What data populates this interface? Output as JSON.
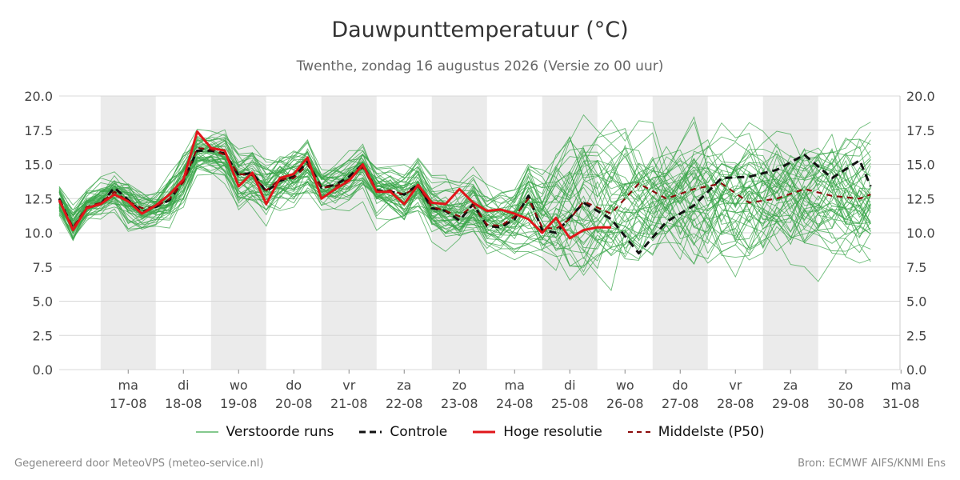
{
  "header": {
    "title": "Dauwpunttemperatuur (°C)",
    "subtitle": "Twenthe, zondag 16 augustus 2026 (Versie zo 00 uur)"
  },
  "footer": {
    "generated": "Gegenereerd door MeteoVPS (meteo-service.nl)",
    "source": "Bron: ECMWF AIFS/KNMI Ens"
  },
  "legend": {
    "perturbed": "Verstoorde runs",
    "control": "Controle",
    "high_res": "Hoge resolutie",
    "median": "Middelste (P50)"
  },
  "colors": {
    "perturbed": "#3aa64a",
    "control": "#111111",
    "high_res": "#e0161a",
    "median": "#8b0a0a",
    "weekend_band": "#ebebeb",
    "grid": "#d8d8d8"
  },
  "chart_data": {
    "type": "line",
    "title": "Dauwpunttemperatuur (°C)",
    "x_unit": "dagen na 16-08 00 uur",
    "xlim": [
      16.5,
      31.2
    ],
    "ylim": [
      0,
      20
    ],
    "y_ticks": [
      "0.0",
      "2.5",
      "5.0",
      "7.5",
      "10.0",
      "12.5",
      "15.0",
      "17.5",
      "20.0"
    ],
    "day_ticks": [
      {
        "x": 17.75,
        "day": "ma",
        "date": "17-08"
      },
      {
        "x": 18.75,
        "day": "di",
        "date": "18-08"
      },
      {
        "x": 19.75,
        "day": "wo",
        "date": "19-08"
      },
      {
        "x": 20.75,
        "day": "do",
        "date": "20-08"
      },
      {
        "x": 21.75,
        "day": "vr",
        "date": "21-08"
      },
      {
        "x": 22.75,
        "day": "za",
        "date": "22-08"
      },
      {
        "x": 23.75,
        "day": "zo",
        "date": "23-08"
      },
      {
        "x": 24.75,
        "day": "ma",
        "date": "24-08"
      },
      {
        "x": 25.75,
        "day": "di",
        "date": "25-08"
      },
      {
        "x": 26.75,
        "day": "wo",
        "date": "26-08"
      },
      {
        "x": 27.75,
        "day": "do",
        "date": "27-08"
      },
      {
        "x": 28.75,
        "day": "vr",
        "date": "28-08"
      },
      {
        "x": 29.75,
        "day": "za",
        "date": "29-08"
      },
      {
        "x": 30.75,
        "day": "zo",
        "date": "30-08"
      },
      {
        "x": 31.75,
        "day": "ma",
        "date": "31-08"
      }
    ],
    "shaded_days": [
      [
        17.25,
        18.25
      ],
      [
        19.25,
        20.25
      ],
      [
        21.25,
        22.25
      ],
      [
        23.25,
        24.25
      ],
      [
        25.25,
        26.25
      ],
      [
        27.25,
        28.25
      ],
      [
        29.25,
        30.25
      ]
    ],
    "grid": true,
    "legend_position": "bottom",
    "series": [
      {
        "name": "Controle",
        "style": "dashed",
        "x": [
          16.5,
          16.75,
          17.0,
          17.25,
          17.5,
          17.75,
          18.0,
          18.25,
          18.5,
          18.75,
          19.0,
          19.25,
          19.5,
          19.75,
          20.0,
          20.25,
          20.5,
          20.75,
          21.0,
          21.25,
          21.5,
          21.75,
          22.0,
          22.25,
          22.5,
          22.75,
          23.0,
          23.25,
          23.5,
          23.75,
          24.0,
          24.25,
          24.5,
          24.75,
          25.0,
          25.25,
          25.5,
          25.75,
          26.0,
          26.5,
          27.0,
          27.5,
          28.0,
          28.5,
          29.0,
          29.5,
          30.0,
          30.5,
          31.0,
          31.2
        ],
        "y": [
          12.5,
          10.3,
          11.8,
          12.1,
          13.3,
          12.4,
          11.5,
          11.9,
          12.4,
          13.8,
          16.0,
          16.0,
          15.8,
          14.2,
          14.4,
          13.0,
          13.8,
          14.1,
          15.2,
          13.3,
          13.5,
          14.1,
          15.0,
          13.1,
          13.0,
          12.8,
          13.5,
          11.8,
          11.6,
          10.9,
          12.1,
          10.5,
          10.4,
          11.0,
          12.7,
          10.2,
          10.0,
          11.1,
          12.2,
          11.0,
          8.5,
          10.8,
          12.0,
          14.0,
          14.1,
          14.6,
          15.7,
          14.0,
          15.3,
          13.4
        ]
      },
      {
        "name": "Hoge resolutie",
        "style": "solid",
        "x": [
          16.5,
          16.75,
          17.0,
          17.25,
          17.5,
          17.75,
          18.0,
          18.25,
          18.5,
          18.75,
          19.0,
          19.25,
          19.5,
          19.75,
          20.0,
          20.25,
          20.5,
          20.75,
          21.0,
          21.25,
          21.5,
          21.75,
          22.0,
          22.25,
          22.5,
          22.75,
          23.0,
          23.25,
          23.5,
          23.75,
          24.0,
          24.25,
          24.5,
          24.75,
          25.0,
          25.25,
          25.5,
          25.75,
          26.0,
          26.25,
          26.5
        ],
        "y": [
          12.4,
          10.2,
          11.8,
          12.1,
          12.8,
          12.3,
          11.4,
          12.0,
          12.8,
          13.9,
          17.4,
          16.2,
          16.0,
          13.4,
          14.4,
          12.1,
          14.0,
          14.3,
          15.5,
          12.5,
          13.2,
          13.8,
          15.0,
          13.0,
          13.0,
          12.1,
          13.5,
          12.2,
          12.1,
          13.2,
          12.2,
          11.6,
          11.7,
          11.4,
          11.0,
          10.0,
          11.1,
          9.6,
          10.2,
          10.4,
          10.4
        ]
      },
      {
        "name": "Middelste (P50)",
        "style": "dashed",
        "x": [
          16.5,
          16.75,
          17.0,
          17.25,
          17.5,
          17.75,
          18.0,
          18.25,
          18.5,
          18.75,
          19.0,
          19.25,
          19.5,
          19.75,
          20.0,
          20.25,
          20.5,
          20.75,
          21.0,
          21.25,
          21.5,
          21.75,
          22.0,
          22.25,
          22.5,
          22.75,
          23.0,
          23.25,
          23.5,
          23.75,
          24.0,
          24.25,
          24.5,
          24.75,
          25.0,
          25.25,
          25.5,
          25.75,
          26.0,
          26.5,
          27.0,
          27.5,
          28.0,
          28.5,
          29.0,
          29.5,
          30.0,
          30.5,
          31.0,
          31.2
        ],
        "y": [
          12.3,
          10.4,
          11.9,
          12.2,
          13.0,
          12.3,
          11.8,
          11.9,
          12.5,
          13.7,
          16.2,
          16.1,
          15.7,
          14.3,
          14.2,
          13.1,
          13.9,
          14.0,
          15.0,
          13.3,
          13.4,
          13.9,
          14.8,
          13.0,
          13.1,
          12.8,
          13.4,
          11.9,
          11.6,
          11.2,
          12.0,
          10.6,
          10.5,
          11.2,
          12.5,
          10.4,
          10.3,
          11.0,
          12.3,
          11.4,
          13.6,
          12.5,
          13.2,
          13.6,
          12.2,
          12.5,
          13.2,
          12.7,
          12.5,
          12.8
        ]
      }
    ],
    "ensemble": {
      "name": "Verstoorde runs",
      "style": "thin",
      "members": 50,
      "x": [
        16.5,
        16.75,
        17.0,
        17.25,
        17.5,
        17.75,
        18.0,
        18.25,
        18.5,
        18.75,
        19.0,
        19.25,
        19.5,
        19.75,
        20.0,
        20.25,
        20.5,
        20.75,
        21.0,
        21.25,
        21.5,
        21.75,
        22.0,
        22.25,
        22.5,
        22.75,
        23.0,
        23.25,
        23.5,
        23.75,
        24.0,
        24.25,
        24.5,
        24.75,
        25.0,
        25.25,
        25.5,
        25.75,
        26.0,
        26.25,
        26.5,
        26.75,
        27.0,
        27.25,
        27.5,
        27.75,
        28.0,
        28.25,
        28.5,
        28.75,
        29.0,
        29.25,
        29.5,
        29.75,
        30.0,
        30.25,
        30.5,
        30.75,
        31.0,
        31.2
      ],
      "p10": [
        11.2,
        9.3,
        11.0,
        11.3,
        11.8,
        10.6,
        10.4,
        10.9,
        11.3,
        12.5,
        14.6,
        14.6,
        14.2,
        12.3,
        12.2,
        11.3,
        12.0,
        12.4,
        13.3,
        12.0,
        12.2,
        12.5,
        13.3,
        11.5,
        11.4,
        11.0,
        11.9,
        10.3,
        10.0,
        9.7,
        10.2,
        9.2,
        9.0,
        9.0,
        9.3,
        8.5,
        8.0,
        7.8,
        8.0,
        8.3,
        8.3,
        8.4,
        8.6,
        8.7,
        8.6,
        8.8,
        8.6,
        8.7,
        9.0,
        8.8,
        9.0,
        9.1,
        9.0,
        9.2,
        9.3,
        9.1,
        9.3,
        9.2,
        9.4,
        9.3
      ],
      "p90": [
        13.2,
        11.6,
        12.8,
        13.5,
        14.1,
        13.7,
        12.8,
        12.9,
        13.9,
        15.4,
        17.0,
        16.9,
        16.8,
        15.5,
        15.6,
        14.6,
        15.6,
        15.8,
        16.6,
        14.5,
        14.7,
        15.3,
        16.0,
        14.4,
        14.4,
        14.1,
        15.1,
        13.4,
        13.3,
        12.9,
        13.7,
        12.6,
        12.5,
        12.8,
        14.5,
        13.5,
        14.8,
        15.6,
        16.3,
        16.0,
        16.0,
        16.3,
        16.2,
        16.4,
        16.1,
        16.3,
        16.5,
        16.2,
        16.3,
        16.1,
        16.4,
        16.2,
        16.3,
        16.0,
        16.4,
        16.1,
        16.2,
        16.0,
        16.2,
        16.0
      ]
    }
  }
}
